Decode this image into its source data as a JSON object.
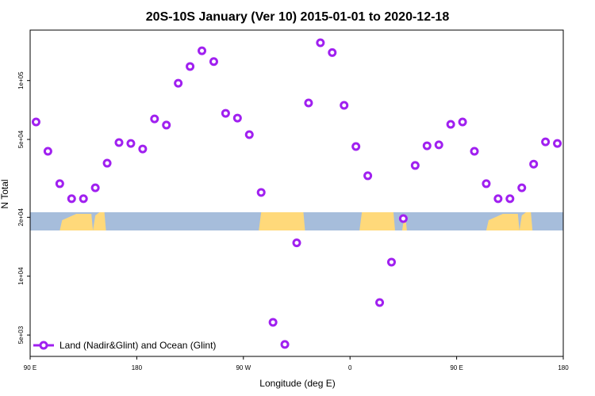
{
  "chart_data": {
    "type": "scatter",
    "title": "20S-10S January (Ver 10)   2015-01-01 to 2020-12-18",
    "xlabel": "Longitude (deg E)",
    "ylabel": "N Total",
    "y_scale": "log",
    "ylim": [
      4200,
      180000
    ],
    "xlim_unwrapped_deg": [
      90,
      540
    ],
    "x_ticks": [
      {
        "value": 90,
        "label": "90 E"
      },
      {
        "value": 180,
        "label": "180"
      },
      {
        "value": 270,
        "label": "90 W"
      },
      {
        "value": 360,
        "label": "0"
      },
      {
        "value": 450,
        "label": "90 E"
      },
      {
        "value": 540,
        "label": "180"
      }
    ],
    "y_ticks": [
      {
        "value": 5000,
        "label": "5e+03"
      },
      {
        "value": 10000,
        "label": "1e+04"
      },
      {
        "value": 20000,
        "label": "2e+04"
      },
      {
        "value": 50000,
        "label": "5e+04"
      },
      {
        "value": 100000,
        "label": "1e+05"
      }
    ],
    "grid": false,
    "legend_position": "bottom-left",
    "background_map": "land/ocean strip 20S-10S",
    "colors": {
      "series": "#a020f0",
      "ocean": "#a6bddb",
      "land": "#ffd97a"
    },
    "series": [
      {
        "name": "Land (Nadir&Glint) and Ocean (Glint)",
        "x": [
          95,
          105,
          115,
          125,
          135,
          145,
          155,
          165,
          175,
          185,
          195,
          205,
          215,
          225,
          235,
          245,
          255,
          265,
          275,
          285,
          295,
          305,
          315,
          325,
          335,
          345,
          355,
          365,
          375,
          385,
          395,
          405,
          415,
          425,
          435,
          445,
          455,
          465,
          475,
          485,
          495,
          505,
          515,
          525,
          535
        ],
        "values": [
          61400,
          43500,
          29700,
          24900,
          24900,
          28300,
          37800,
          48200,
          47700,
          44700,
          63700,
          59200,
          96900,
          118000,
          142000,
          125000,
          68000,
          64300,
          52900,
          26800,
          5810,
          4480,
          14800,
          76800,
          156000,
          139000,
          74700,
          46000,
          32600,
          7330,
          11800,
          19700,
          36800,
          46400,
          46900,
          59700,
          61400,
          43500,
          29700,
          24900,
          24900,
          28300,
          37400,
          48600,
          47700
        ]
      }
    ]
  }
}
